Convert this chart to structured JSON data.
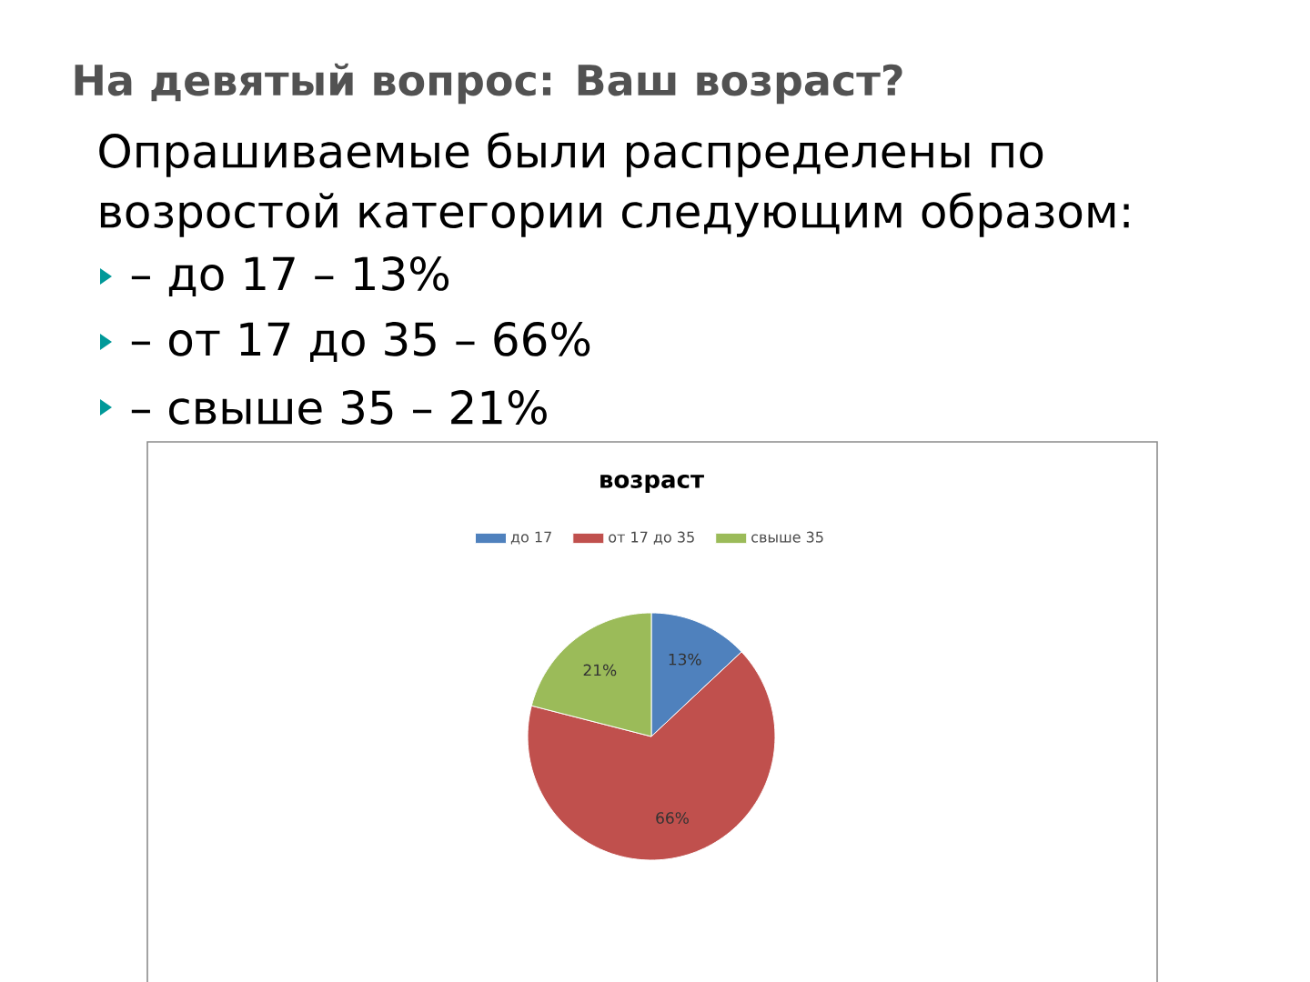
{
  "chart_data": {
    "type": "pie",
    "title": "возраст",
    "categories": [
      "до 17",
      "от 17 до 35",
      "свыше 35"
    ],
    "values": [
      13,
      66,
      21
    ],
    "colors": [
      "#4f81bd",
      "#c0504d",
      "#9bbb59"
    ],
    "value_labels": [
      "13%",
      "66%",
      "21%"
    ],
    "legend": "top",
    "annotations": [
      "На девятый вопрос: Ваш возраст?",
      "Опрашиваемые были распределены по",
      "возростой категории следующим образом:",
      "– до 17 – 13%",
      "– от 17 до 35 – 66%",
      "– свыше 35 – 21%"
    ]
  }
}
